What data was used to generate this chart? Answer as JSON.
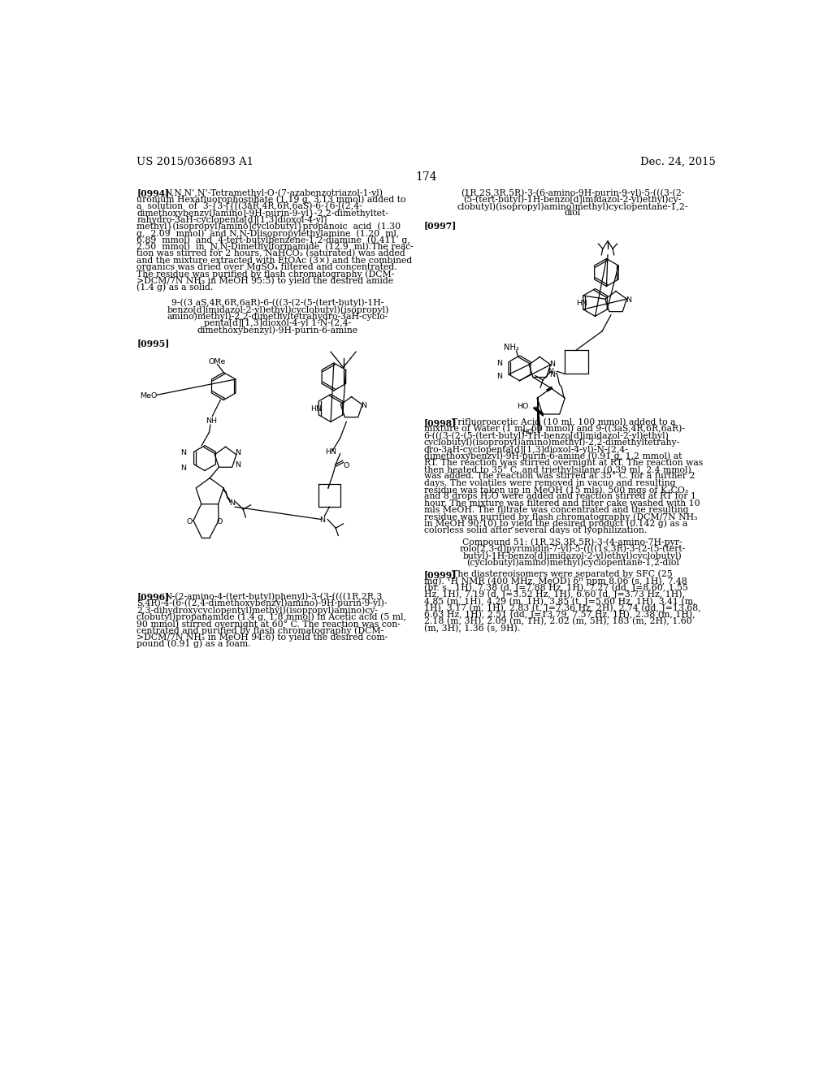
{
  "background_color": "#ffffff",
  "header_left": "US 2015/0366893 A1",
  "header_right": "Dec. 24, 2015",
  "page_number": "174"
}
